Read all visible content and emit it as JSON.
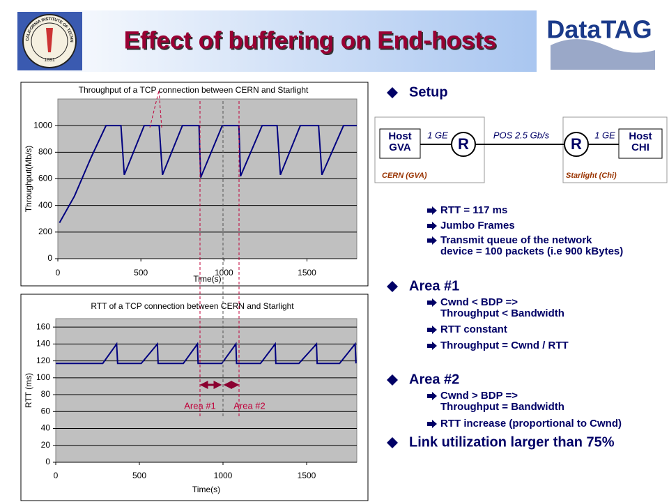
{
  "header": {
    "title": "Effect of buffering on End-hosts",
    "logo_left_text": "CALIFORNIA INSTITUTE OF TECHNOLOGY",
    "logo_left_year": "1891",
    "logo_right": "DataTAG"
  },
  "charts": [
    {
      "type": "line",
      "title": "Throughput of a TCP connection between CERN and Starlight",
      "xlabel": "Time(s)",
      "ylabel": "Throughput(Mb/s)",
      "xlim": [
        0,
        1800
      ],
      "ylim": [
        0,
        1200
      ],
      "xticks": [
        0,
        500,
        1000,
        1500
      ],
      "yticks": [
        0,
        200,
        400,
        600,
        800,
        1000
      ],
      "grid": true,
      "x": [
        10,
        100,
        200,
        290,
        380,
        400,
        520,
        610,
        630,
        750,
        850,
        860,
        990,
        1090,
        1100,
        1230,
        1320,
        1340,
        1460,
        1570,
        1590,
        1720,
        1800
      ],
      "series": [
        {
          "color": "#000080",
          "values": [
            270,
            470,
            760,
            1000,
            1000,
            630,
            1000,
            1000,
            630,
            1000,
            1000,
            610,
            1000,
            1000,
            620,
            1000,
            1000,
            630,
            1000,
            1000,
            630,
            1000,
            1000
          ]
        }
      ]
    },
    {
      "type": "line",
      "title": "RTT of a TCP connection between CERN and Starlight",
      "xlabel": "Time(s)",
      "ylabel": "RTT (ms)",
      "xlim": [
        0,
        1800
      ],
      "ylim": [
        0,
        170
      ],
      "xticks": [
        0,
        500,
        1000,
        1500
      ],
      "yticks": [
        0,
        20,
        40,
        60,
        80,
        100,
        120,
        140,
        160
      ],
      "grid": true,
      "x": [
        0,
        281,
        364,
        370,
        511,
        608,
        612,
        763,
        847,
        851,
        993,
        1077,
        1081,
        1224,
        1312,
        1316,
        1454,
        1559,
        1563,
        1697,
        1790,
        1795
      ],
      "series": [
        {
          "color": "#000080",
          "values": [
            117,
            117,
            140,
            117,
            117,
            140,
            117,
            117,
            140,
            117,
            117,
            140,
            117,
            117,
            140,
            117,
            117,
            140,
            117,
            117,
            140,
            117
          ]
        }
      ],
      "annotations": [
        "Area #1",
        "Area #2"
      ]
    }
  ],
  "diagram": {
    "host_left": "Host GVA",
    "router_left": "R",
    "link_left": "1 GE",
    "link_mid": "POS 2.5 Gb/s",
    "router_right": "R",
    "link_right": "1 GE",
    "host_right": "Host CHI",
    "site_left": "CERN (GVA)",
    "site_right": "Starlight (Chi)"
  },
  "bullets": [
    {
      "text": "Setup",
      "subs": [
        {
          "lines": [
            "RTT = 117 ms"
          ]
        },
        {
          "lines": [
            "Jumbo Frames"
          ]
        },
        {
          "lines": [
            "Transmit queue of the network",
            "device = 100 packets (i.e 900 kBytes)"
          ]
        }
      ]
    },
    {
      "text": "Area #1",
      "subs": [
        {
          "lines": [
            "Cwnd < BDP =>",
            "Throughput < Bandwidth"
          ]
        },
        {
          "lines": [
            "RTT constant"
          ]
        },
        {
          "lines": [
            "Throughput = Cwnd / RTT"
          ]
        }
      ]
    },
    {
      "text": "Area #2",
      "subs": [
        {
          "lines": [
            "Cwnd > BDP =>",
            "Throughput = Bandwidth"
          ]
        },
        {
          "lines": [
            "RTT increase (proportional to Cwnd)"
          ]
        }
      ]
    },
    {
      "text": "Link utilization larger than 75%",
      "subs": []
    }
  ]
}
